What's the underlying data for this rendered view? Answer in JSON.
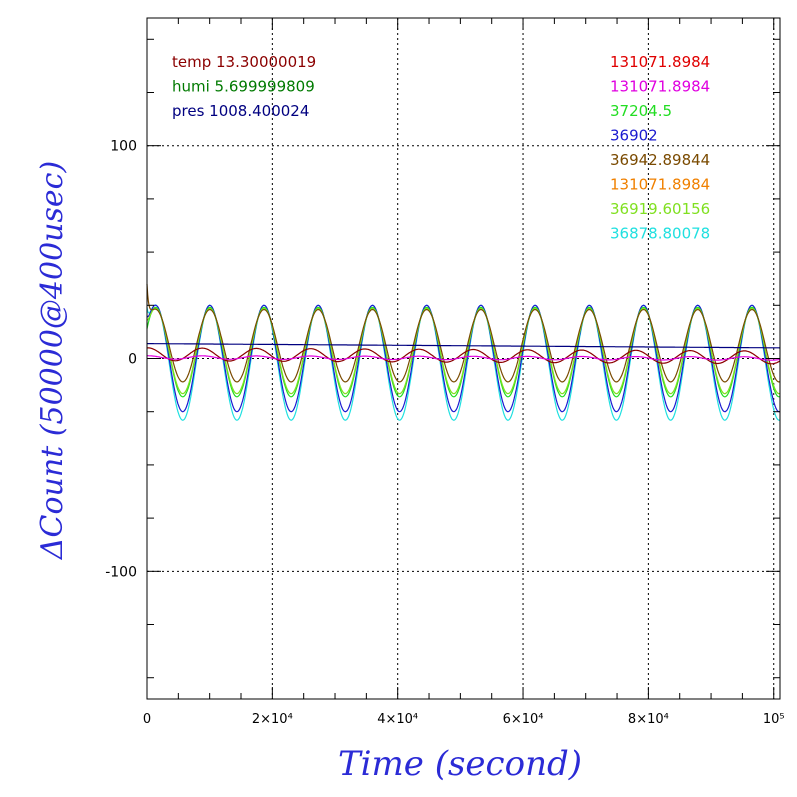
{
  "chart_data": {
    "type": "line",
    "xlabel": "Time (second)",
    "ylabel": "ΔCount (50000@400usec)",
    "xlim": [
      0,
      101000
    ],
    "ylim": [
      -160,
      160
    ],
    "x_ticks": [
      {
        "value": 0,
        "label": "0"
      },
      {
        "value": 20000,
        "label": "2×10⁴"
      },
      {
        "value": 40000,
        "label": "4×10⁴"
      },
      {
        "value": 60000,
        "label": "6×10⁴"
      },
      {
        "value": 80000,
        "label": "8×10⁴"
      },
      {
        "value": 100000,
        "label": "10⁵"
      }
    ],
    "y_ticks": [
      {
        "value": 100,
        "label": "100"
      },
      {
        "value": 0,
        "label": "0"
      },
      {
        "value": -100,
        "label": "-100"
      }
    ],
    "grid": true,
    "grid_style": "dotted",
    "left_labels": [
      {
        "text": "temp 13.30000019",
        "color": "#8b0000"
      },
      {
        "text": "humi 5.699999809",
        "color": "#007a00"
      },
      {
        "text": "pres 1008.400024",
        "color": "#000080"
      }
    ],
    "right_labels": [
      {
        "text": "131071.8984",
        "color": "#e00000"
      },
      {
        "text": "131071.8984",
        "color": "#e000e0"
      },
      {
        "text": "37204.5",
        "color": "#22dd22"
      },
      {
        "text": "36902",
        "color": "#1a1ad0"
      },
      {
        "text": "36942.89844",
        "color": "#7a4a00"
      },
      {
        "text": "131071.8984",
        "color": "#f08000"
      },
      {
        "text": "36919.60156",
        "color": "#80e020"
      },
      {
        "text": "36878.80078",
        "color": "#20e0e0"
      }
    ],
    "period": 8650,
    "oscillating_series": [
      {
        "color": "#20e0e0",
        "center": -2,
        "amplitude": 27,
        "start": 24
      },
      {
        "color": "#1a1ad0",
        "center": 0,
        "amplitude": 25,
        "start": 20
      },
      {
        "color": "#22dd22",
        "center": 3,
        "amplitude": 21,
        "start": 14
      },
      {
        "color": "#80e020",
        "center": 3.5,
        "amplitude": 20,
        "start": 18
      },
      {
        "color": "#7a4a00",
        "center": 6,
        "amplitude": 17,
        "start": 35
      }
    ],
    "flat_series": [
      {
        "color": "#000080",
        "start": 7,
        "end": 5,
        "wiggle": 0
      },
      {
        "color": "#8b0000",
        "start": 2,
        "end": 0.5,
        "wiggle": 3
      },
      {
        "color": "#e000e0",
        "start": 0.5,
        "end": 0,
        "wiggle": 0.8
      }
    ]
  }
}
